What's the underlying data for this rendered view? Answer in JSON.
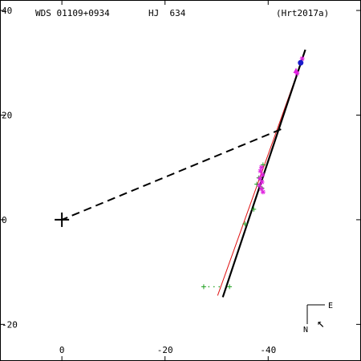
{
  "header": {
    "wds": "WDS 01109+0934",
    "name": "HJ  634",
    "ref": "(Hrt2017a)"
  },
  "chart_data": {
    "type": "scatter",
    "xlim": [
      12,
      -58
    ],
    "ylim": [
      -27,
      42
    ],
    "x_ticks": [
      {
        "value": 0,
        "label": "0"
      },
      {
        "value": -20,
        "label": "-20"
      },
      {
        "value": -40,
        "label": "-40"
      }
    ],
    "y_ticks": [
      {
        "value": 40,
        "label": "40"
      },
      {
        "value": 20,
        "label": "20"
      },
      {
        "value": 0,
        "label": "0"
      },
      {
        "value": -20,
        "label": "-20"
      }
    ],
    "primary": {
      "x": 0,
      "y": 0
    },
    "orbit_line": {
      "x1": -47.2,
      "y1": 32.5,
      "x2": -31.2,
      "y2": -14.8
    },
    "fit_line": {
      "x1": -46.8,
      "y1": 31.2,
      "x2": -30.2,
      "y2": -14.5
    },
    "periastron_line": {
      "x1": -42.5,
      "y1": 17.3,
      "x2": 0,
      "y2": 0
    },
    "series": [
      {
        "marker": "plus",
        "color": "#1fa01f",
        "points": [
          [
            -39.0,
            10.5
          ],
          [
            -38.2,
            8.0
          ],
          [
            -37.8,
            6.8
          ],
          [
            -37.2,
            2.0
          ],
          [
            -35.5,
            -0.8
          ],
          [
            -32.5,
            -12.8
          ],
          [
            -27.5,
            -12.8
          ],
          [
            -38.8,
            6.0
          ]
        ]
      },
      {
        "marker": "asterisk",
        "color": "#e020e0",
        "points": [
          [
            -38.7,
            10.0
          ],
          [
            -38.5,
            9.3
          ],
          [
            -38.9,
            8.6
          ],
          [
            -38.4,
            7.9
          ],
          [
            -38.8,
            7.2
          ],
          [
            -38.3,
            6.6
          ],
          [
            -38.7,
            5.9
          ],
          [
            -39.0,
            5.3
          ],
          [
            -46.6,
            30.8
          ],
          [
            -45.6,
            28.0
          ]
        ]
      },
      {
        "marker": "triangle",
        "color": "#e020e0",
        "points": [
          [
            -45.4,
            28.5
          ]
        ]
      },
      {
        "marker": "circle",
        "color": "#1a1acc",
        "points": [
          [
            -46.3,
            30.0
          ]
        ]
      }
    ],
    "residual_dots": [
      [
        -29.5,
        -12.8
      ],
      [
        -28.5,
        -12.8
      ],
      [
        -30.5,
        -12.8
      ]
    ]
  },
  "compass": {
    "east": "E",
    "north": "N",
    "arrow": "↖"
  }
}
